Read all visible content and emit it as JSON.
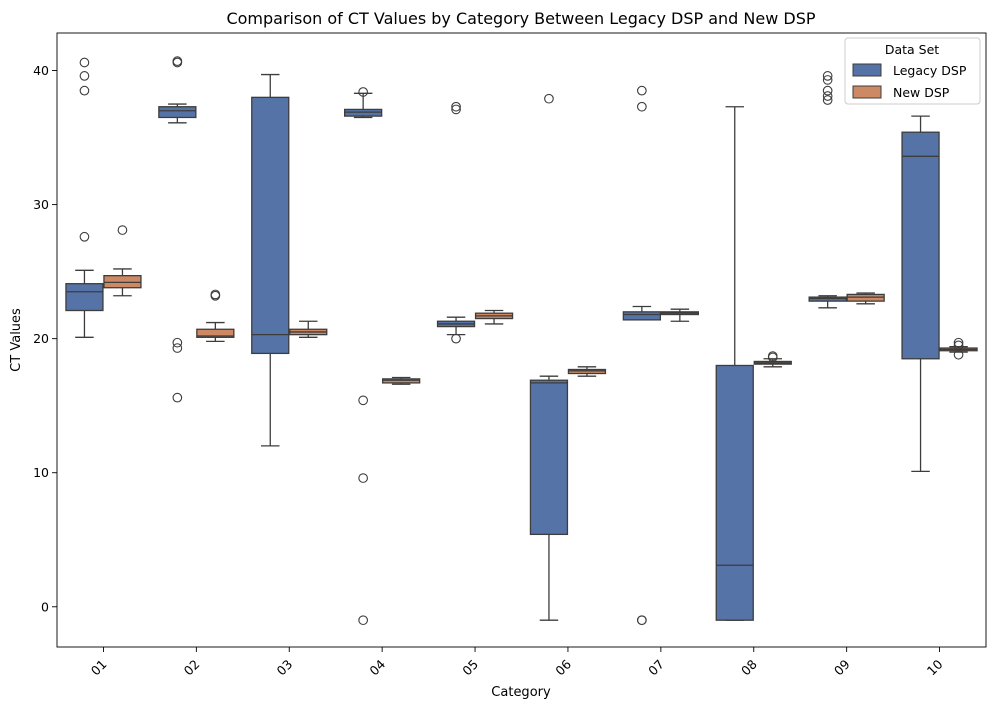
{
  "chart_data": {
    "type": "box",
    "title": "Comparison of CT Values by Category Between Legacy DSP and New DSP",
    "xlabel": "Category",
    "ylabel": "CT Values",
    "categories": [
      "01",
      "02",
      "03",
      "04",
      "05",
      "06",
      "07",
      "08",
      "09",
      "10"
    ],
    "ylim": [
      -3,
      42.8
    ],
    "yticks": [
      0,
      10,
      20,
      30,
      40
    ],
    "legend": {
      "title": "Data Set",
      "placement": "top-right"
    },
    "series": [
      {
        "name": "Legacy DSP",
        "color": "#5573a6",
        "boxes": [
          {
            "whislo": 20.1,
            "q1": 22.1,
            "med": 23.5,
            "q3": 24.1,
            "whishi": 25.1,
            "fliers": [
              40.6,
              39.6,
              38.5,
              27.6
            ]
          },
          {
            "whislo": 36.1,
            "q1": 36.5,
            "med": 37.0,
            "q3": 37.3,
            "whishi": 37.5,
            "fliers": [
              40.7,
              40.6,
              19.7,
              19.3,
              15.6
            ]
          },
          {
            "whislo": 12.0,
            "q1": 18.9,
            "med": 20.3,
            "q3": 38.0,
            "whishi": 39.7,
            "fliers": []
          },
          {
            "whislo": 36.5,
            "q1": 36.6,
            "med": 36.9,
            "q3": 37.1,
            "whishi": 38.3,
            "fliers": [
              38.4,
              15.4,
              9.6,
              -1.0
            ]
          },
          {
            "whislo": 20.3,
            "q1": 20.9,
            "med": 21.1,
            "q3": 21.3,
            "whishi": 21.6,
            "fliers": [
              37.3,
              37.1,
              20.0
            ]
          },
          {
            "whislo": -1.0,
            "q1": 5.4,
            "med": 16.7,
            "q3": 16.9,
            "whishi": 17.2,
            "fliers": [
              37.9
            ]
          },
          {
            "whislo": 21.4,
            "q1": 21.4,
            "med": 21.8,
            "q3": 22.0,
            "whishi": 22.4,
            "fliers": [
              38.5,
              37.3,
              -1.0,
              -1.0
            ]
          },
          {
            "whislo": -1.0,
            "q1": -1.0,
            "med": 3.1,
            "q3": 18.0,
            "whishi": 37.3,
            "fliers": []
          },
          {
            "whislo": 22.3,
            "q1": 22.8,
            "med": 23.0,
            "q3": 23.1,
            "whishi": 23.2,
            "fliers": [
              39.6,
              39.3,
              38.5,
              38.1,
              37.8
            ]
          },
          {
            "whislo": 10.1,
            "q1": 18.5,
            "med": 33.6,
            "q3": 35.4,
            "whishi": 36.6,
            "fliers": []
          }
        ]
      },
      {
        "name": "New DSP",
        "color": "#cc8963",
        "boxes": [
          {
            "whislo": 23.2,
            "q1": 23.8,
            "med": 24.2,
            "q3": 24.7,
            "whishi": 25.2,
            "fliers": [
              28.1
            ]
          },
          {
            "whislo": 19.8,
            "q1": 20.1,
            "med": 20.2,
            "q3": 20.7,
            "whishi": 21.2,
            "fliers": [
              23.3,
              23.2
            ]
          },
          {
            "whislo": 20.1,
            "q1": 20.3,
            "med": 20.5,
            "q3": 20.7,
            "whishi": 21.3,
            "fliers": []
          },
          {
            "whislo": 16.6,
            "q1": 16.7,
            "med": 16.9,
            "q3": 17.0,
            "whishi": 17.1,
            "fliers": []
          },
          {
            "whislo": 21.1,
            "q1": 21.5,
            "med": 21.7,
            "q3": 21.9,
            "whishi": 22.1,
            "fliers": []
          },
          {
            "whislo": 17.2,
            "q1": 17.4,
            "med": 17.6,
            "q3": 17.7,
            "whishi": 17.9,
            "fliers": []
          },
          {
            "whislo": 21.3,
            "q1": 21.8,
            "med": 21.9,
            "q3": 22.0,
            "whishi": 22.2,
            "fliers": []
          },
          {
            "whislo": 17.9,
            "q1": 18.1,
            "med": 18.2,
            "q3": 18.3,
            "whishi": 18.5,
            "fliers": [
              18.7,
              18.6
            ]
          },
          {
            "whislo": 22.6,
            "q1": 22.8,
            "med": 23.1,
            "q3": 23.3,
            "whishi": 23.4,
            "fliers": []
          },
          {
            "whislo": 19.0,
            "q1": 19.1,
            "med": 19.2,
            "q3": 19.3,
            "whishi": 19.4,
            "fliers": [
              19.7,
              19.5,
              18.8
            ]
          }
        ]
      }
    ]
  }
}
